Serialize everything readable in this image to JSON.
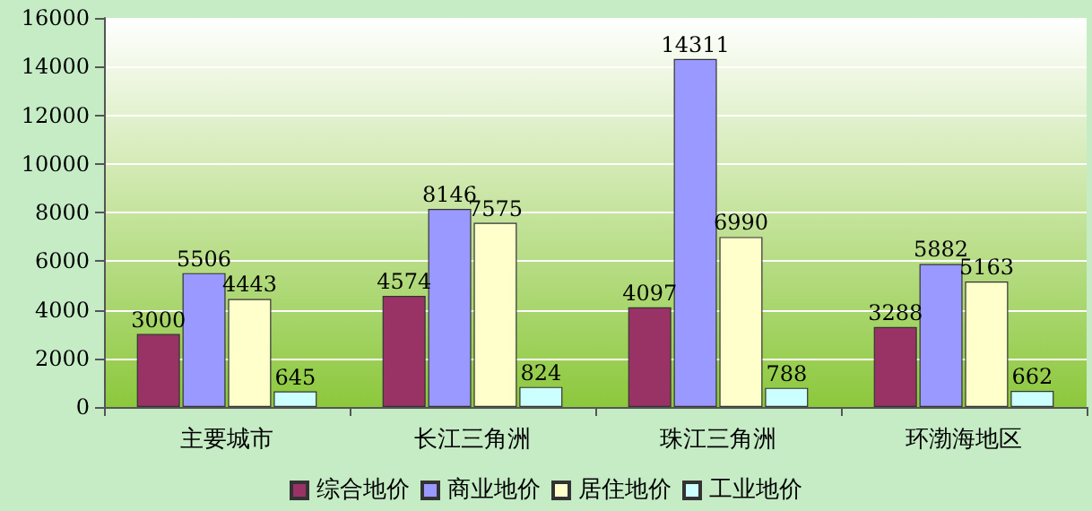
{
  "chart_data": {
    "type": "bar",
    "categories": [
      "主要城市",
      "长江三角洲",
      "珠江三角洲",
      "环渤海地区"
    ],
    "series": [
      {
        "name": "综合地价",
        "color": "#993366",
        "values": [
          3000,
          4574,
          4097,
          3288
        ]
      },
      {
        "name": "商业地价",
        "color": "#9999ff",
        "values": [
          5506,
          8146,
          14311,
          5882
        ]
      },
      {
        "name": "居住地价",
        "color": "#ffffcc",
        "values": [
          4443,
          7575,
          6990,
          5163
        ]
      },
      {
        "name": "工业地价",
        "color": "#ccffff",
        "values": [
          645,
          824,
          788,
          662
        ]
      }
    ],
    "ylim": [
      0,
      16000
    ],
    "yticks": [
      0,
      2000,
      4000,
      6000,
      8000,
      10000,
      12000,
      14000,
      16000
    ],
    "grid": "y",
    "legend": "bottom",
    "data_labels": true
  }
}
